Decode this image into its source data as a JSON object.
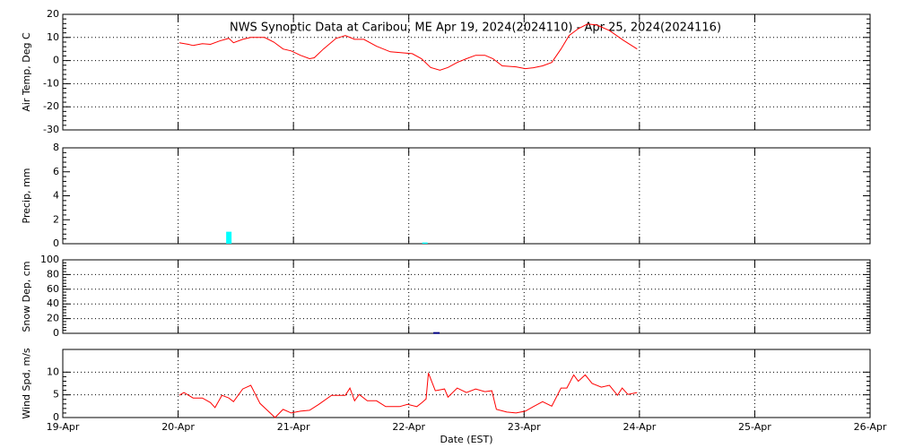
{
  "chart_data": [
    {
      "type": "line",
      "title": "NWS Synoptic Data at Caribou, ME   Apr 19, 2024(2024110) - Apr 25, 2024(2024116)",
      "ylabel": "Air Temp, Deg C",
      "ylim": [
        -30,
        20
      ],
      "yticks": [
        -30,
        -20,
        -10,
        0,
        10,
        20
      ],
      "ygrid": true,
      "color": "#ff0000",
      "x": [
        1.01,
        1.09,
        1.13,
        1.21,
        1.28,
        1.36,
        1.44,
        1.48,
        1.56,
        1.63,
        1.75,
        1.83,
        1.91,
        1.98,
        2.06,
        2.14,
        2.18,
        2.26,
        2.37,
        2.45,
        2.53,
        2.61,
        2.72,
        2.84,
        3.03,
        3.11,
        3.19,
        3.27,
        3.34,
        3.42,
        3.5,
        3.58,
        3.66,
        3.73,
        3.81,
        3.93,
        4.01,
        4.08,
        4.16,
        4.24,
        4.32,
        4.39,
        4.47,
        4.55,
        4.63,
        4.74,
        4.86,
        4.98
      ],
      "values": [
        7.7,
        7,
        6.5,
        7.3,
        7,
        8.5,
        9.6,
        7.7,
        9.2,
        10,
        10,
        8,
        5,
        4.2,
        2.3,
        0.8,
        1.2,
        5,
        9.6,
        10.8,
        9.2,
        9.2,
        6.2,
        3.8,
        3,
        0.8,
        -3,
        -4.2,
        -3,
        -0.8,
        0.8,
        2.3,
        2.3,
        0.8,
        -2.3,
        -2.7,
        -3.5,
        -3.1,
        -2.3,
        -0.8,
        5,
        10.8,
        13.8,
        15.8,
        15.4,
        13,
        8.8,
        5
      ]
    },
    {
      "type": "bar",
      "ylabel": "Precip, mm",
      "ylim": [
        0,
        8
      ],
      "yticks": [
        0,
        2,
        4,
        6,
        8
      ],
      "ygrid": false,
      "color": "#00ffff",
      "filled": true,
      "x": [
        1.44,
        3.14
      ],
      "values": [
        1.0,
        0.1
      ]
    },
    {
      "type": "bar",
      "ylabel": "Snow Dep, cm",
      "ylim": [
        0,
        100
      ],
      "yticks": [
        0,
        20,
        40,
        60,
        80,
        100
      ],
      "ygrid": true,
      "color": "#000080",
      "filled": false,
      "x": [
        3.24
      ],
      "values": [
        1
      ]
    },
    {
      "type": "line",
      "ylabel": "Wind Spd, m/s",
      "xlabel": "Date (EST)",
      "ylim": [
        0,
        15
      ],
      "yticks": [
        0,
        5,
        10
      ],
      "ygrid": true,
      "xgrid": true,
      "color": "#ff0000",
      "xlim": [
        0,
        7
      ],
      "xticks": [
        {
          "value": 0,
          "label": "19-Apr"
        },
        {
          "value": 1,
          "label": "20-Apr"
        },
        {
          "value": 2,
          "label": "21-Apr"
        },
        {
          "value": 3,
          "label": "22-Apr"
        },
        {
          "value": 4,
          "label": "23-Apr"
        },
        {
          "value": 5,
          "label": "24-Apr"
        },
        {
          "value": 6,
          "label": "25-Apr"
        },
        {
          "value": 7,
          "label": "26-Apr"
        }
      ],
      "x": [
        1.01,
        1.05,
        1.13,
        1.21,
        1.28,
        1.32,
        1.38,
        1.44,
        1.48,
        1.56,
        1.63,
        1.71,
        1.79,
        1.84,
        1.91,
        1.98,
        2.06,
        2.14,
        2.22,
        2.33,
        2.45,
        2.49,
        2.53,
        2.57,
        2.64,
        2.72,
        2.8,
        2.92,
        2.99,
        3.07,
        3.11,
        3.15,
        3.17,
        3.23,
        3.31,
        3.34,
        3.42,
        3.5,
        3.58,
        3.66,
        3.72,
        3.76,
        3.85,
        3.93,
        4.01,
        4.08,
        4.16,
        4.24,
        4.32,
        4.37,
        4.43,
        4.47,
        4.53,
        4.59,
        4.67,
        4.74,
        4.81,
        4.85,
        4.9,
        4.98
      ],
      "values": [
        4.9,
        5.5,
        4.3,
        4.3,
        3.3,
        2.2,
        4.9,
        4.3,
        3.5,
        6.3,
        7.1,
        3.1,
        1.2,
        0,
        1.8,
        1,
        1.4,
        1.6,
        2.9,
        4.9,
        4.9,
        6.5,
        3.7,
        5.1,
        3.7,
        3.7,
        2.4,
        2.4,
        2.9,
        2.4,
        3.2,
        4.1,
        9.8,
        5.9,
        6.3,
        4.5,
        6.5,
        5.5,
        6.3,
        5.7,
        5.9,
        1.8,
        1.2,
        1,
        1.4,
        2.4,
        3.5,
        2.5,
        6.5,
        6.5,
        9.4,
        8,
        9.4,
        7.5,
        6.7,
        7.1,
        4.9,
        6.5,
        5.1,
        5.5
      ]
    }
  ]
}
